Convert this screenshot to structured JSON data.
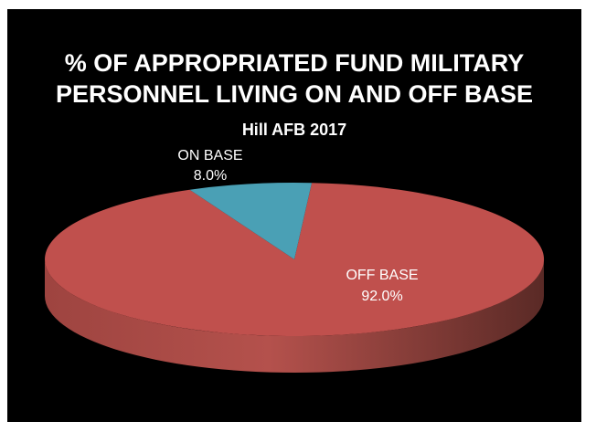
{
  "chart_data": {
    "type": "pie",
    "title_line1": "% OF APPROPRIATED FUND MILITARY",
    "title_line2": "PERSONNEL LIVING ON AND OFF BASE",
    "subtitle": "Hill AFB 2017",
    "legend": "none",
    "slices": [
      {
        "label": "ON BASE",
        "value": 8.0,
        "value_label": "8.0%",
        "color": "#4aa0b5"
      },
      {
        "label": "OFF BASE",
        "value": 92.0,
        "value_label": "92.0%",
        "color": "#c0504d"
      }
    ]
  },
  "colors": {
    "background": "#000000",
    "text": "#ffffff",
    "off_base_side_dark": "#5a2a26",
    "on_base": "#4aa0b5",
    "off_base": "#c0504d"
  }
}
